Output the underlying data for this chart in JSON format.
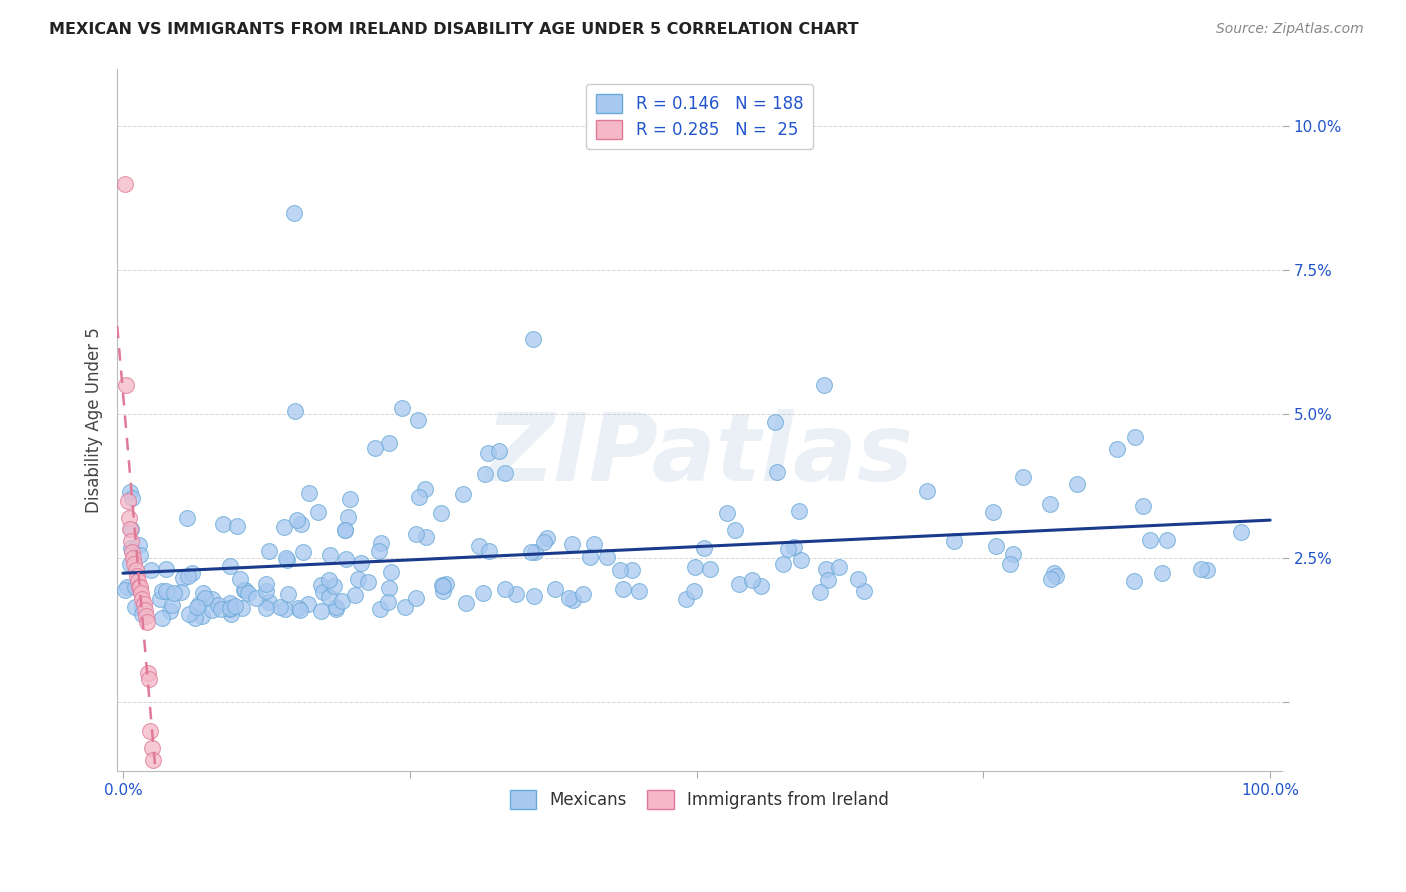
{
  "title": "MEXICAN VS IMMIGRANTS FROM IRELAND DISABILITY AGE UNDER 5 CORRELATION CHART",
  "source": "Source: ZipAtlas.com",
  "ylabel": "Disability Age Under 5",
  "mexican_color": "#a8c8f0",
  "mexican_edge": "#6aaad8",
  "ireland_color": "#f4b8c8",
  "ireland_edge": "#e07898",
  "trendline_mexican_color": "#1a3a8c",
  "trendline_ireland_color": "#e07898",
  "R_mexican": 0.146,
  "N_mexican": 188,
  "R_ireland": 0.285,
  "N_ireland": 25,
  "legend_label_mexican": "Mexicans",
  "legend_label_ireland": "Immigrants from Ireland",
  "watermark": "ZIPatlas",
  "grid_color": "#cccccc",
  "title_color": "#222222",
  "source_color": "#888888",
  "axis_label_color": "#2255cc",
  "ylabel_color": "#444444"
}
